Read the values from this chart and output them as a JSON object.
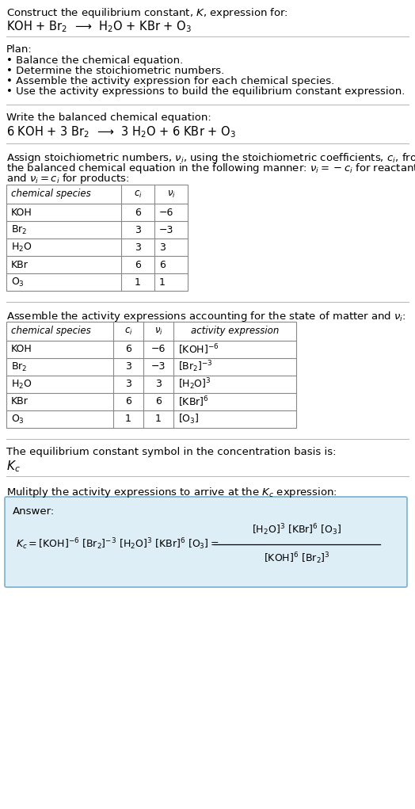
{
  "title_line1": "Construct the equilibrium constant, $K$, expression for:",
  "title_line2": "KOH + Br$_2$  ⟶  H$_2$O + KBr + O$_3$",
  "plan_header": "Plan:",
  "plan_bullets": [
    "• Balance the chemical equation.",
    "• Determine the stoichiometric numbers.",
    "• Assemble the activity expression for each chemical species.",
    "• Use the activity expressions to build the equilibrium constant expression."
  ],
  "balanced_header": "Write the balanced chemical equation:",
  "balanced_eq": "6 KOH + 3 Br$_2$  ⟶  3 H$_2$O + 6 KBr + O$_3$",
  "stoich_header1": "Assign stoichiometric numbers, $\\nu_i$, using the stoichiometric coefficients, $c_i$, from",
  "stoich_header2": "the balanced chemical equation in the following manner: $\\nu_i = -c_i$ for reactants",
  "stoich_header3": "and $\\nu_i = c_i$ for products:",
  "table1_headers": [
    "chemical species",
    "$c_i$",
    "$\\nu_i$"
  ],
  "table1_rows": [
    [
      "KOH",
      "6",
      "−6"
    ],
    [
      "Br$_2$",
      "3",
      "−3"
    ],
    [
      "H$_2$O",
      "3",
      "3"
    ],
    [
      "KBr",
      "6",
      "6"
    ],
    [
      "O$_3$",
      "1",
      "1"
    ]
  ],
  "activity_header": "Assemble the activity expressions accounting for the state of matter and $\\nu_i$:",
  "table2_headers": [
    "chemical species",
    "$c_i$",
    "$\\nu_i$",
    "activity expression"
  ],
  "table2_rows": [
    [
      "KOH",
      "6",
      "−6",
      "[KOH]$^{-6}$"
    ],
    [
      "Br$_2$",
      "3",
      "−3",
      "[Br$_2$]$^{-3}$"
    ],
    [
      "H$_2$O",
      "3",
      "3",
      "[H$_2$O]$^3$"
    ],
    [
      "KBr",
      "6",
      "6",
      "[KBr]$^6$"
    ],
    [
      "O$_3$",
      "1",
      "1",
      "[O$_3$]"
    ]
  ],
  "kc_header": "The equilibrium constant symbol in the concentration basis is:",
  "kc_symbol": "$K_c$",
  "multiply_header": "Mulitply the activity expressions to arrive at the $K_c$ expression:",
  "answer_label": "Answer:",
  "bg_color": "#ffffff",
  "table_border_color": "#888888",
  "answer_box_facecolor": "#deeef6",
  "answer_box_edgecolor": "#7ab0cc",
  "section_line_color": "#bbbbbb",
  "text_color": "#000000",
  "font_size": 9.5
}
